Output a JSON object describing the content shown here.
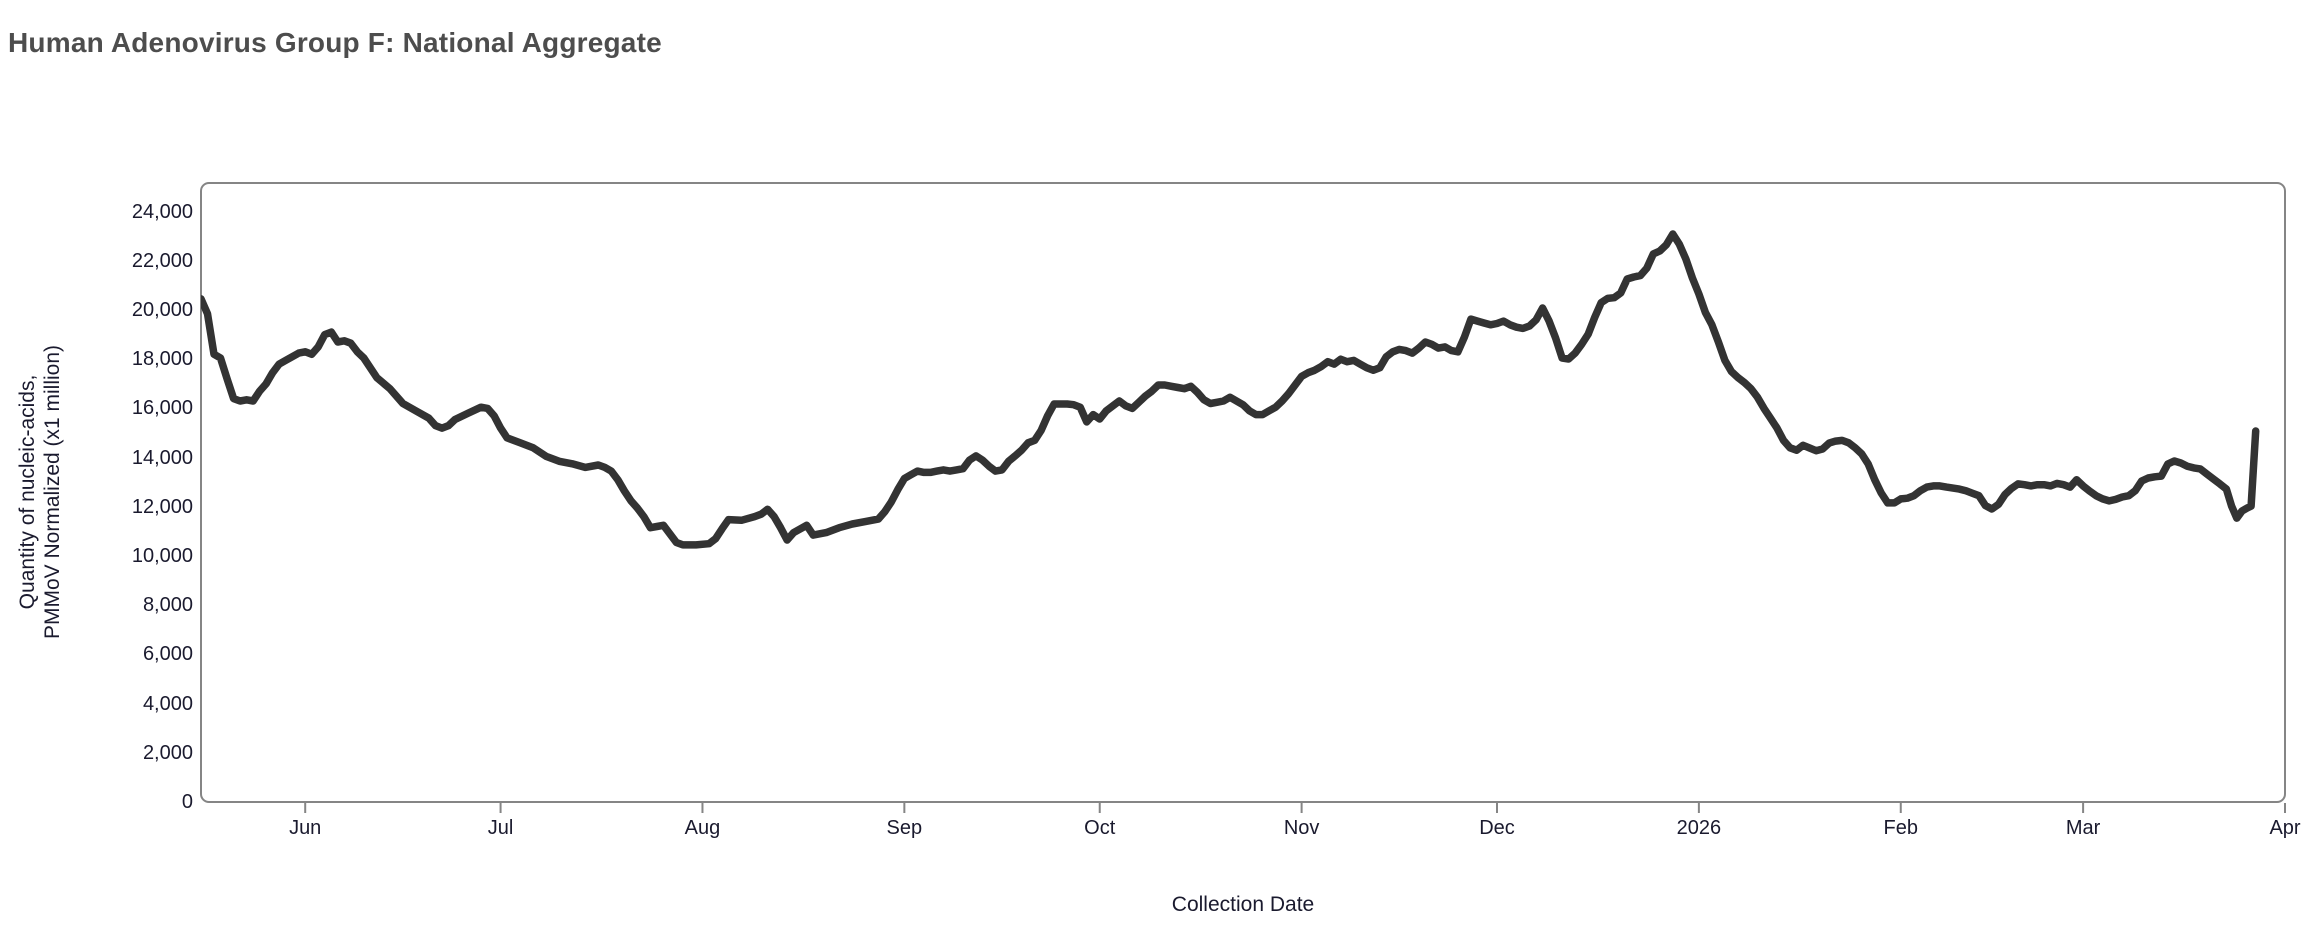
{
  "page": {
    "title": "Human Adenovirus Group F: National Aggregate"
  },
  "chart_data": {
    "type": "line",
    "title": "Human Adenovirus Group F: National Aggregate",
    "xlabel": "Collection Date",
    "ylabel_line1": "Quantity of nucleic-acids,",
    "ylabel_line2": "PMMoV Normalized (x1 million)",
    "legend": "none",
    "grid": false,
    "line_color": "#333333",
    "axis_color": "#858585",
    "text_color": "#1a1a2e",
    "title_color": "#4d4d4d",
    "background_color": "#ffffff",
    "x_start_date": "2025-05-16",
    "x_end_date": "2026-04-01",
    "x_domain_days": [
      0,
      320
    ],
    "ylim": [
      0,
      25160
    ],
    "y_ticks": [
      0,
      2000,
      4000,
      6000,
      8000,
      10000,
      12000,
      14000,
      16000,
      18000,
      20000,
      22000,
      24000
    ],
    "x_ticks": [
      {
        "label": "Jun",
        "day": 16
      },
      {
        "label": "Jul",
        "day": 46
      },
      {
        "label": "Aug",
        "day": 77
      },
      {
        "label": "Sep",
        "day": 108
      },
      {
        "label": "Oct",
        "day": 138
      },
      {
        "label": "Nov",
        "day": 169
      },
      {
        "label": "Dec",
        "day": 199
      },
      {
        "label": "2026",
        "day": 230
      },
      {
        "label": "Feb",
        "day": 261
      },
      {
        "label": "Mar",
        "day": 289
      },
      {
        "label": "Apr",
        "day": 320
      }
    ],
    "series": [
      {
        "name": "National Aggregate",
        "points": [
          [
            0,
            20450
          ],
          [
            1,
            19850
          ],
          [
            2,
            18200
          ],
          [
            3,
            18050
          ],
          [
            4,
            17200
          ],
          [
            5,
            16400
          ],
          [
            6,
            16300
          ],
          [
            7,
            16350
          ],
          [
            8,
            16300
          ],
          [
            9,
            16700
          ],
          [
            10,
            17000
          ],
          [
            11,
            17450
          ],
          [
            12,
            17800
          ],
          [
            13,
            17950
          ],
          [
            14,
            18100
          ],
          [
            15,
            18250
          ],
          [
            16,
            18300
          ],
          [
            17,
            18200
          ],
          [
            18,
            18500
          ],
          [
            19,
            19000
          ],
          [
            20,
            19100
          ],
          [
            21,
            18700
          ],
          [
            22,
            18750
          ],
          [
            23,
            18650
          ],
          [
            24,
            18300
          ],
          [
            25,
            18050
          ],
          [
            27,
            17250
          ],
          [
            29,
            16800
          ],
          [
            31,
            16200
          ],
          [
            33,
            15900
          ],
          [
            35,
            15600
          ],
          [
            36,
            15300
          ],
          [
            37,
            15200
          ],
          [
            38,
            15300
          ],
          [
            39,
            15550
          ],
          [
            41,
            15800
          ],
          [
            43,
            16050
          ],
          [
            44,
            16000
          ],
          [
            45,
            15700
          ],
          [
            46,
            15200
          ],
          [
            47,
            14800
          ],
          [
            49,
            14600
          ],
          [
            51,
            14400
          ],
          [
            53,
            14050
          ],
          [
            55,
            13850
          ],
          [
            57,
            13750
          ],
          [
            59,
            13600
          ],
          [
            61,
            13700
          ],
          [
            62,
            13600
          ],
          [
            63,
            13450
          ],
          [
            64,
            13100
          ],
          [
            65,
            12650
          ],
          [
            66,
            12250
          ],
          [
            67,
            11950
          ],
          [
            68,
            11600
          ],
          [
            69,
            11150
          ],
          [
            70,
            11200
          ],
          [
            71,
            11250
          ],
          [
            72,
            10900
          ],
          [
            73,
            10550
          ],
          [
            74,
            10450
          ],
          [
            76,
            10450
          ],
          [
            78,
            10500
          ],
          [
            79,
            10700
          ],
          [
            80,
            11100
          ],
          [
            81,
            11480
          ],
          [
            83,
            11450
          ],
          [
            85,
            11600
          ],
          [
            86,
            11700
          ],
          [
            87,
            11900
          ],
          [
            88,
            11600
          ],
          [
            89,
            11150
          ],
          [
            90,
            10650
          ],
          [
            91,
            10950
          ],
          [
            93,
            11250
          ],
          [
            94,
            10850
          ],
          [
            96,
            10950
          ],
          [
            98,
            11150
          ],
          [
            100,
            11300
          ],
          [
            102,
            11400
          ],
          [
            104,
            11500
          ],
          [
            105,
            11800
          ],
          [
            106,
            12200
          ],
          [
            107,
            12700
          ],
          [
            108,
            13150
          ],
          [
            109,
            13300
          ],
          [
            110,
            13450
          ],
          [
            111,
            13400
          ],
          [
            112,
            13400
          ],
          [
            113,
            13450
          ],
          [
            114,
            13500
          ],
          [
            115,
            13450
          ],
          [
            116,
            13500
          ],
          [
            117,
            13550
          ],
          [
            118,
            13900
          ],
          [
            119,
            14070
          ],
          [
            120,
            13900
          ],
          [
            121,
            13650
          ],
          [
            122,
            13450
          ],
          [
            123,
            13500
          ],
          [
            124,
            13850
          ],
          [
            125,
            14070
          ],
          [
            126,
            14300
          ],
          [
            127,
            14600
          ],
          [
            128,
            14700
          ],
          [
            129,
            15100
          ],
          [
            130,
            15700
          ],
          [
            131,
            16180
          ],
          [
            132,
            16180
          ],
          [
            133,
            16180
          ],
          [
            134,
            16150
          ],
          [
            135,
            16050
          ],
          [
            136,
            15450
          ],
          [
            137,
            15750
          ],
          [
            138,
            15570
          ],
          [
            139,
            15900
          ],
          [
            140,
            16100
          ],
          [
            141,
            16300
          ],
          [
            142,
            16100
          ],
          [
            143,
            16000
          ],
          [
            144,
            16250
          ],
          [
            145,
            16500
          ],
          [
            146,
            16700
          ],
          [
            147,
            16950
          ],
          [
            148,
            16950
          ],
          [
            149,
            16900
          ],
          [
            150,
            16850
          ],
          [
            151,
            16800
          ],
          [
            152,
            16900
          ],
          [
            153,
            16650
          ],
          [
            154,
            16350
          ],
          [
            155,
            16200
          ],
          [
            156,
            16250
          ],
          [
            157,
            16300
          ],
          [
            158,
            16450
          ],
          [
            159,
            16300
          ],
          [
            160,
            16150
          ],
          [
            161,
            15900
          ],
          [
            162,
            15750
          ],
          [
            163,
            15750
          ],
          [
            164,
            15900
          ],
          [
            165,
            16050
          ],
          [
            166,
            16300
          ],
          [
            167,
            16600
          ],
          [
            168,
            16950
          ],
          [
            169,
            17300
          ],
          [
            170,
            17450
          ],
          [
            171,
            17550
          ],
          [
            172,
            17700
          ],
          [
            173,
            17900
          ],
          [
            174,
            17800
          ],
          [
            175,
            18000
          ],
          [
            176,
            17900
          ],
          [
            177,
            17950
          ],
          [
            178,
            17800
          ],
          [
            179,
            17650
          ],
          [
            180,
            17550
          ],
          [
            181,
            17650
          ],
          [
            182,
            18100
          ],
          [
            183,
            18300
          ],
          [
            184,
            18400
          ],
          [
            185,
            18350
          ],
          [
            186,
            18250
          ],
          [
            187,
            18450
          ],
          [
            188,
            18700
          ],
          [
            189,
            18600
          ],
          [
            190,
            18450
          ],
          [
            191,
            18500
          ],
          [
            192,
            18350
          ],
          [
            193,
            18300
          ],
          [
            194,
            18900
          ],
          [
            195,
            19630
          ],
          [
            196,
            19550
          ],
          [
            197,
            19470
          ],
          [
            198,
            19400
          ],
          [
            199,
            19450
          ],
          [
            200,
            19550
          ],
          [
            201,
            19400
          ],
          [
            202,
            19300
          ],
          [
            203,
            19250
          ],
          [
            204,
            19350
          ],
          [
            205,
            19600
          ],
          [
            206,
            20080
          ],
          [
            207,
            19550
          ],
          [
            208,
            18860
          ],
          [
            209,
            18050
          ],
          [
            210,
            18010
          ],
          [
            211,
            18250
          ],
          [
            212,
            18600
          ],
          [
            213,
            19020
          ],
          [
            214,
            19700
          ],
          [
            215,
            20300
          ],
          [
            216,
            20470
          ],
          [
            217,
            20500
          ],
          [
            218,
            20690
          ],
          [
            219,
            21260
          ],
          [
            220,
            21340
          ],
          [
            221,
            21400
          ],
          [
            222,
            21700
          ],
          [
            223,
            22280
          ],
          [
            224,
            22400
          ],
          [
            225,
            22650
          ],
          [
            226,
            23090
          ],
          [
            227,
            22680
          ],
          [
            228,
            22070
          ],
          [
            229,
            21300
          ],
          [
            230,
            20650
          ],
          [
            231,
            19900
          ],
          [
            232,
            19400
          ],
          [
            233,
            18700
          ],
          [
            234,
            17950
          ],
          [
            235,
            17500
          ],
          [
            236,
            17250
          ],
          [
            237,
            17050
          ],
          [
            238,
            16800
          ],
          [
            239,
            16450
          ],
          [
            240,
            16000
          ],
          [
            241,
            15600
          ],
          [
            242,
            15200
          ],
          [
            243,
            14700
          ],
          [
            244,
            14400
          ],
          [
            245,
            14300
          ],
          [
            246,
            14500
          ],
          [
            247,
            14390
          ],
          [
            248,
            14280
          ],
          [
            249,
            14350
          ],
          [
            250,
            14590
          ],
          [
            251,
            14670
          ],
          [
            252,
            14700
          ],
          [
            253,
            14600
          ],
          [
            254,
            14400
          ],
          [
            255,
            14150
          ],
          [
            256,
            13740
          ],
          [
            257,
            13100
          ],
          [
            258,
            12560
          ],
          [
            259,
            12160
          ],
          [
            260,
            12160
          ],
          [
            261,
            12320
          ],
          [
            262,
            12350
          ],
          [
            263,
            12450
          ],
          [
            264,
            12650
          ],
          [
            265,
            12800
          ],
          [
            266,
            12850
          ],
          [
            267,
            12850
          ],
          [
            268,
            12800
          ],
          [
            269,
            12760
          ],
          [
            270,
            12720
          ],
          [
            271,
            12650
          ],
          [
            272,
            12550
          ],
          [
            273,
            12450
          ],
          [
            274,
            12050
          ],
          [
            275,
            11910
          ],
          [
            276,
            12100
          ],
          [
            277,
            12500
          ],
          [
            278,
            12750
          ],
          [
            279,
            12930
          ],
          [
            280,
            12900
          ],
          [
            281,
            12850
          ],
          [
            282,
            12900
          ],
          [
            283,
            12900
          ],
          [
            284,
            12850
          ],
          [
            285,
            12950
          ],
          [
            286,
            12900
          ],
          [
            287,
            12800
          ],
          [
            288,
            13100
          ],
          [
            289,
            12850
          ],
          [
            290,
            12640
          ],
          [
            291,
            12450
          ],
          [
            292,
            12320
          ],
          [
            293,
            12240
          ],
          [
            294,
            12300
          ],
          [
            295,
            12400
          ],
          [
            296,
            12450
          ],
          [
            297,
            12650
          ],
          [
            298,
            13050
          ],
          [
            299,
            13170
          ],
          [
            300,
            13220
          ],
          [
            301,
            13250
          ],
          [
            302,
            13740
          ],
          [
            303,
            13860
          ],
          [
            304,
            13780
          ],
          [
            305,
            13650
          ],
          [
            306,
            13580
          ],
          [
            307,
            13540
          ],
          [
            308,
            13330
          ],
          [
            309,
            13130
          ],
          [
            310,
            12930
          ],
          [
            311,
            12720
          ],
          [
            311.8,
            12030
          ],
          [
            312.6,
            11540
          ],
          [
            313.4,
            11830
          ],
          [
            314.2,
            11950
          ],
          [
            314.8,
            12030
          ],
          [
            315.5,
            15080
          ]
        ]
      }
    ]
  }
}
